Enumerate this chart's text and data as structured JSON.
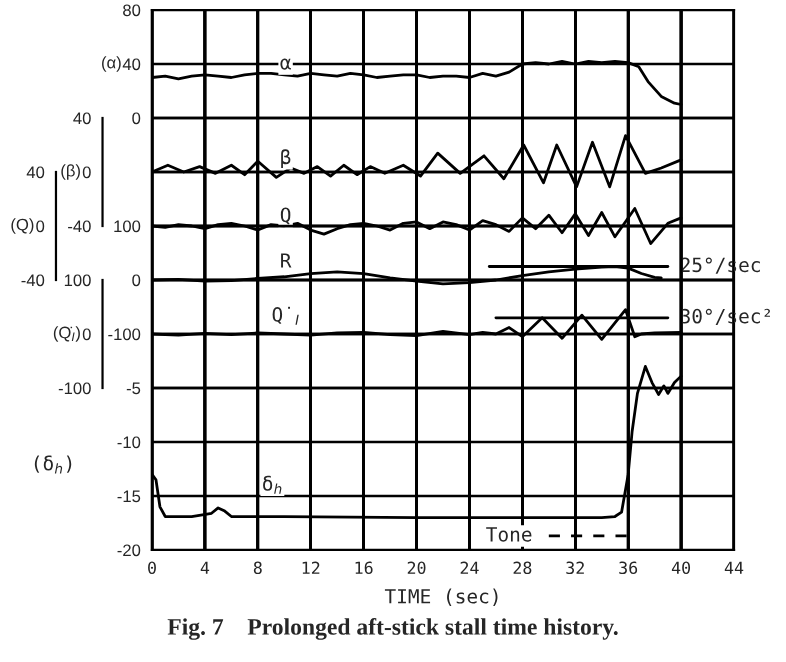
{
  "chart_data": [
    {
      "type": "line",
      "xlim": [
        0,
        44
      ],
      "xticks": [
        0,
        4,
        8,
        12,
        16,
        20,
        24,
        28,
        32,
        36,
        40,
        44
      ],
      "ylim": [
        -320,
        80
      ],
      "yticks": [
        80,
        40,
        0
      ],
      "ylabel": "(α)",
      "grid": true,
      "tick_labels": "y",
      "series": [
        {
          "color": "#000000",
          "x": [
            0,
            1,
            2,
            3,
            4,
            5,
            6,
            7,
            8,
            9,
            10,
            11,
            12,
            13,
            14,
            15,
            16,
            17,
            18,
            19,
            20,
            21,
            22,
            23,
            24,
            25,
            26,
            27,
            28,
            29,
            30,
            31,
            32,
            33,
            34,
            35,
            36,
            36.8,
            37.5,
            38.5,
            39.5,
            40
          ],
          "values": [
            30,
            31,
            29,
            31,
            32,
            31,
            30,
            32,
            33,
            33,
            32,
            31,
            33,
            32,
            31,
            33,
            32,
            30,
            31,
            32,
            32,
            30,
            31,
            31,
            30,
            33,
            31,
            34,
            40,
            41,
            40,
            42,
            40,
            42,
            41,
            42,
            41,
            38,
            27,
            16,
            11,
            10
          ]
        }
      ],
      "annotations": [
        {
          "text": "α",
          "x": 10.1,
          "y": 40
        }
      ]
    },
    {
      "type": "line",
      "xlim": [
        0,
        44
      ],
      "xticks": [
        0,
        4,
        8,
        12,
        16,
        20,
        24,
        28,
        32,
        36,
        40,
        44
      ],
      "ylim": [
        -280,
        120
      ],
      "yticks": [
        40,
        0,
        -40
      ],
      "ylabel": "(β)",
      "grid": true,
      "tick_labels": "y",
      "series": [
        {
          "color": "#000000",
          "x": [
            0,
            1.2,
            2.4,
            3.6,
            4.8,
            6,
            7,
            8,
            9.4,
            10.5,
            11.5,
            12.5,
            13.5,
            14.5,
            15.5,
            16.5,
            17.6,
            19,
            20.3,
            21.6,
            23.3,
            25.1,
            26.6,
            28.1,
            29.6,
            30.6,
            32.1,
            33.3,
            34.6,
            35.8,
            37.3,
            38.5,
            40
          ],
          "values": [
            0,
            5,
            0,
            4,
            -1,
            5,
            -2,
            8,
            -4,
            3,
            -1,
            4,
            -3,
            5,
            -2,
            4,
            -1,
            5,
            -3,
            14,
            -1,
            12,
            -5,
            20,
            -8,
            20,
            -11,
            22,
            -11,
            27,
            -1,
            3,
            9
          ]
        }
      ],
      "annotations": [
        {
          "text": "β",
          "x": 10.1,
          "y": 10
        }
      ]
    },
    {
      "type": "line",
      "xlim": [
        0,
        44
      ],
      "xticks": [
        0,
        4,
        8,
        12,
        16,
        20,
        24,
        28,
        32,
        36,
        40,
        44
      ],
      "ylim": [
        -240,
        160
      ],
      "yticks": [
        40,
        0,
        -40
      ],
      "ylabel": "(Q)",
      "grid": true,
      "tick_labels": "y",
      "series": [
        {
          "color": "#000000",
          "x": [
            0,
            1,
            2,
            3,
            4,
            5,
            6,
            7,
            8,
            9,
            10,
            11,
            12,
            13,
            14,
            15,
            16,
            17,
            18,
            19,
            20,
            21,
            22,
            23,
            24,
            25,
            26,
            27,
            28,
            29,
            30,
            31,
            32,
            33,
            34,
            35,
            36.5,
            37.7,
            39,
            40
          ],
          "values": [
            0,
            -1,
            1,
            0,
            -2,
            1,
            2,
            0,
            -3,
            1,
            0,
            2,
            -3,
            -6,
            -2,
            1,
            2,
            0,
            -3,
            2,
            3,
            -2,
            3,
            1,
            -3,
            4,
            1,
            -4,
            6,
            -2,
            8,
            -5,
            9,
            -7,
            10,
            -8,
            13,
            -13,
            2,
            6
          ]
        }
      ],
      "annotations": [
        {
          "text": "Q",
          "x": 10.1,
          "y": 7
        }
      ]
    },
    {
      "type": "line",
      "xlim": [
        0,
        44
      ],
      "xticks": [
        0,
        4,
        8,
        12,
        16,
        20,
        24,
        28,
        32,
        36,
        40,
        44
      ],
      "ylim": [
        -500,
        500
      ],
      "yticks": [
        100,
        0,
        -100
      ],
      "grid": true,
      "tick_labels": "y",
      "series": [
        {
          "color": "#000000",
          "x": [
            0,
            2,
            4,
            6,
            8,
            10,
            12,
            14,
            16,
            18,
            20,
            22,
            24,
            26,
            28,
            30,
            32,
            34,
            35,
            36,
            37,
            38,
            38.5
          ],
          "values": [
            0,
            1,
            -2,
            -1,
            3,
            6,
            12,
            15,
            12,
            4,
            -2,
            -7,
            -5,
            0,
            8,
            15,
            20,
            24,
            25,
            22,
            12,
            5,
            4
          ]
        },
        {
          "color": "#000000",
          "x": [
            25.5,
            39
          ],
          "values": [
            25,
            25
          ]
        }
      ],
      "annotations": [
        {
          "text": "R",
          "x": 10.1,
          "y": 33
        },
        {
          "text": "25°/sec",
          "x": 39,
          "y": 25
        }
      ]
    },
    {
      "type": "line",
      "xlim": [
        0,
        44
      ],
      "xticks": [
        0,
        4,
        8,
        12,
        16,
        20,
        24,
        28,
        32,
        36,
        40,
        44
      ],
      "ylim": [
        -400,
        600
      ],
      "yticks": [
        100,
        0,
        -100
      ],
      "ylabel": "(Q̇$_{I}$)",
      "grid": true,
      "tick_labels": "y",
      "series": [
        {
          "color": "#000000",
          "x": [
            0,
            2,
            4,
            6,
            8,
            10,
            12,
            14,
            16,
            18,
            20,
            22,
            24,
            25,
            26,
            27,
            28,
            29.5,
            31,
            32.5,
            34,
            35.8,
            36.5,
            37,
            38,
            40
          ],
          "values": [
            0,
            -2,
            1,
            -1,
            2,
            0,
            -2,
            2,
            3,
            -1,
            -3,
            5,
            -1,
            3,
            0,
            12,
            -5,
            30,
            -8,
            35,
            -10,
            45,
            -5,
            0,
            2,
            3
          ]
        },
        {
          "color": "#000000",
          "x": [
            26,
            39
          ],
          "values": [
            30,
            30
          ]
        }
      ],
      "annotations": [
        {
          "text": "Q̇$_{I}$",
          "x": 10.1,
          "y": 33
        },
        {
          "text": "30°/sec²",
          "x": 39,
          "y": 30
        }
      ]
    },
    {
      "type": "line",
      "xlim": [
        0,
        44
      ],
      "xticks": [
        0,
        4,
        8,
        12,
        16,
        20,
        24,
        28,
        32,
        36,
        40,
        44
      ],
      "ylim": [
        -20,
        30
      ],
      "yticks": [
        -5,
        -10,
        -15,
        -20
      ],
      "grid": true,
      "xlabel": "TIME (sec)",
      "ylabel": "(δ$_{h}$)",
      "series": [
        {
          "color": "#000000",
          "x": [
            0,
            0.3,
            0.6,
            1,
            3,
            4.5,
            5,
            5.5,
            6,
            10,
            20,
            30,
            34,
            35,
            35.5,
            36,
            36.3,
            36.7,
            37.3,
            37.8,
            38.3,
            38.7,
            39,
            39.5,
            40
          ],
          "values": [
            -13,
            -13.5,
            -16,
            -16.9,
            -16.9,
            -16.6,
            -16.1,
            -16.4,
            -16.9,
            -16.9,
            -17,
            -17,
            -17,
            -16.9,
            -16.5,
            -13,
            -9,
            -5.5,
            -3,
            -4.5,
            -5.6,
            -4.8,
            -5.5,
            -4.5,
            -3.9
          ]
        },
        {
          "color": "#000000",
          "x": [
            30,
            36
          ],
          "values": [
            -18.7,
            -18.7
          ],
          "line_style": "dashed"
        }
      ],
      "annotations": [
        {
          "text": "δ$_{h}$",
          "x": 9.1,
          "y": -14
        },
        {
          "text": "Tone",
          "x": 27,
          "y": -18.7
        },
        "Fig. 7    Prolonged aft-stick stall time history."
      ]
    }
  ]
}
